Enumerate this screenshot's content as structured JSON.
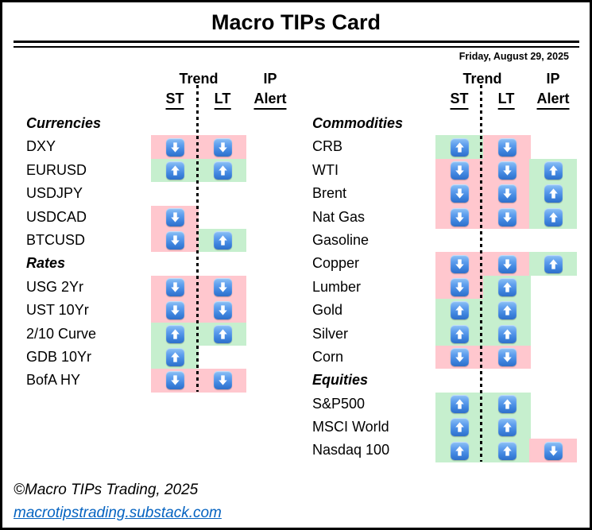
{
  "title": "Macro TIPs Card",
  "date": "Friday, August 29, 2025",
  "columns": {
    "trend": "Trend",
    "ip": "IP",
    "st": "ST",
    "lt": "LT",
    "alert": "Alert"
  },
  "colors": {
    "up_bg": "#C6EFCE",
    "down_bg": "#FFC7CE",
    "arrow_blue": "#3D83DD",
    "link_blue": "#0563C1"
  },
  "footer": {
    "copyright": "©Macro TIPs Trading, 2025",
    "link": "macrotipstrading.substack.com"
  },
  "tables": {
    "left": {
      "sections": [
        {
          "header": "Currencies",
          "rows": [
            {
              "label": "DXY",
              "st": "down",
              "lt": "down",
              "alert": null
            },
            {
              "label": "EURUSD",
              "st": "up",
              "lt": "up",
              "alert": null
            },
            {
              "label": "USDJPY",
              "st": null,
              "lt": null,
              "alert": null
            },
            {
              "label": "USDCAD",
              "st": "down",
              "lt": null,
              "alert": null
            },
            {
              "label": "BTCUSD",
              "st": "down",
              "lt": "up",
              "alert": null
            }
          ]
        },
        {
          "header": "Rates",
          "rows": [
            {
              "label": "USG 2Yr",
              "st": "down",
              "lt": "down",
              "alert": null
            },
            {
              "label": "UST 10Yr",
              "st": "down",
              "lt": "down",
              "alert": null
            },
            {
              "label": "2/10 Curve",
              "st": "up",
              "lt": "up",
              "alert": null
            },
            {
              "label": "GDB 10Yr",
              "st": "up",
              "lt": null,
              "alert": null
            },
            {
              "label": "BofA HY",
              "st": "down",
              "lt": "down",
              "alert": null
            }
          ]
        }
      ]
    },
    "right": {
      "sections": [
        {
          "header": "Commodities",
          "rows": [
            {
              "label": "CRB",
              "st": "up",
              "lt": "down",
              "alert": null
            },
            {
              "label": "WTI",
              "st": "down",
              "lt": "down",
              "alert": "up"
            },
            {
              "label": "Brent",
              "st": "down",
              "lt": "down",
              "alert": "up"
            },
            {
              "label": "Nat Gas",
              "st": "down",
              "lt": "down",
              "alert": "up"
            },
            {
              "label": "Gasoline",
              "st": null,
              "lt": null,
              "alert": null
            },
            {
              "label": "Copper",
              "st": "down",
              "lt": "down",
              "alert": "up"
            },
            {
              "label": "Lumber",
              "st": "down",
              "lt": "up",
              "alert": null
            },
            {
              "label": "Gold",
              "st": "up",
              "lt": "up",
              "alert": null
            },
            {
              "label": "Silver",
              "st": "up",
              "lt": "up",
              "alert": null
            },
            {
              "label": "Corn",
              "st": "down",
              "lt": "down",
              "alert": null
            }
          ]
        },
        {
          "header": "Equities",
          "rows": [
            {
              "label": "S&P500",
              "st": "up",
              "lt": "up",
              "alert": null
            },
            {
              "label": "MSCI World",
              "st": "up",
              "lt": "up",
              "alert": null
            },
            {
              "label": "Nasdaq 100",
              "st": "up",
              "lt": "up",
              "alert": "down"
            }
          ]
        }
      ]
    }
  }
}
